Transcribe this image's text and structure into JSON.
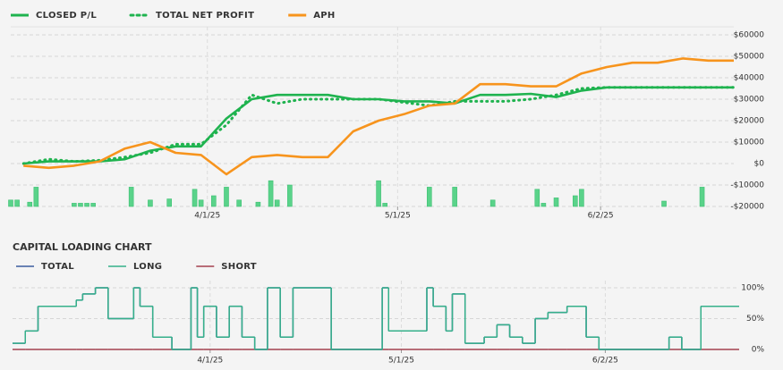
{
  "chart_data": [
    {
      "type": "line",
      "x": [
        "2025-03-03",
        "2025-03-07",
        "2025-03-11",
        "2025-03-15",
        "2025-03-19",
        "2025-03-23",
        "2025-03-27",
        "2025-03-31",
        "2025-04-04",
        "2025-04-08",
        "2025-04-12",
        "2025-04-16",
        "2025-04-20",
        "2025-04-24",
        "2025-04-28",
        "2025-05-02",
        "2025-05-06",
        "2025-05-10",
        "2025-05-14",
        "2025-05-18",
        "2025-05-22",
        "2025-05-26",
        "2025-05-30",
        "2025-06-03",
        "2025-06-07",
        "2025-06-11",
        "2025-06-15",
        "2025-06-19",
        "2025-06-23"
      ],
      "series": [
        {
          "name": "CLOSED P/L",
          "color": "#1fb34f",
          "style": "solid",
          "values": [
            0,
            1000,
            1000,
            1000,
            2000,
            6000,
            8000,
            8000,
            21000,
            30000,
            32000,
            32000,
            32000,
            30000,
            30000,
            29000,
            29000,
            28000,
            32000,
            32000,
            32500,
            31000,
            34000,
            35500,
            35500,
            35500,
            35500,
            35500,
            35500
          ]
        },
        {
          "name": "TOTAL NET PROFIT",
          "color": "#1fb34f",
          "style": "dotted",
          "values": [
            0,
            2000,
            1000,
            1500,
            3000,
            5000,
            9000,
            9000,
            18000,
            32000,
            28000,
            30000,
            30000,
            30000,
            30000,
            28500,
            27000,
            29000,
            29000,
            29000,
            30000,
            32000,
            35000,
            35500,
            35500,
            35500,
            35500,
            35500,
            35500
          ]
        },
        {
          "name": "APH",
          "color": "#f7941d",
          "style": "solid",
          "values": [
            -1000,
            -2000,
            -1000,
            1000,
            7000,
            10000,
            5000,
            4000,
            -5000,
            3000,
            4000,
            3000,
            3000,
            15000,
            20000,
            23000,
            27000,
            28000,
            37000,
            37000,
            36000,
            36000,
            42000,
            45000,
            47000,
            47000,
            49000,
            48000,
            48000
          ]
        }
      ],
      "bars": {
        "color": "#5ad38a",
        "x": [
          "2025-03-01",
          "2025-03-02",
          "2025-03-04",
          "2025-03-05",
          "2025-03-11",
          "2025-03-12",
          "2025-03-13",
          "2025-03-14",
          "2025-03-20",
          "2025-03-23",
          "2025-03-26",
          "2025-03-30",
          "2025-03-31",
          "2025-04-02",
          "2025-04-04",
          "2025-04-06",
          "2025-04-09",
          "2025-04-11",
          "2025-04-12",
          "2025-04-14",
          "2025-04-28",
          "2025-04-29",
          "2025-05-06",
          "2025-05-10",
          "2025-05-16",
          "2025-05-23",
          "2025-05-24",
          "2025-05-26",
          "2025-05-29",
          "2025-05-30",
          "2025-06-12",
          "2025-06-18"
        ],
        "values": [
          -17000,
          -17000,
          -18000,
          -11000,
          -18500,
          -18500,
          -18500,
          -18500,
          -11000,
          -17000,
          -16500,
          -12000,
          -17000,
          -15000,
          -11000,
          -17000,
          -18000,
          -8000,
          -17000,
          -10000,
          -8000,
          -18500,
          -11000,
          -11000,
          -17000,
          -12000,
          -18500,
          -16000,
          -15000,
          -12000,
          -17500,
          -11000
        ]
      },
      "xlim": [
        "2025-03-01",
        "2025-06-23"
      ],
      "xticks": [
        {
          "value": "2025-04-01",
          "label": "4/1/25"
        },
        {
          "value": "2025-05-01",
          "label": "5/1/25"
        },
        {
          "value": "2025-06-02",
          "label": "6/2/25"
        }
      ],
      "ylim": [
        -20000,
        60000
      ],
      "yticks": [
        {
          "value": -20000,
          "label": "-$20000"
        },
        {
          "value": -10000,
          "label": "-$10000"
        },
        {
          "value": 0,
          "label": "$0"
        },
        {
          "value": 10000,
          "label": "$10000"
        },
        {
          "value": 20000,
          "label": "$20000"
        },
        {
          "value": 30000,
          "label": "$30000"
        },
        {
          "value": 40000,
          "label": "$40000"
        },
        {
          "value": 50000,
          "label": "$50000"
        },
        {
          "value": 60000,
          "label": "$60000"
        }
      ],
      "grid": true
    },
    {
      "type": "step",
      "title": "CAPITAL LOADING CHART",
      "x": [
        "2025-03-01",
        "2025-03-03",
        "2025-03-05",
        "2025-03-11",
        "2025-03-12",
        "2025-03-14",
        "2025-03-16",
        "2025-03-20",
        "2025-03-21",
        "2025-03-23",
        "2025-03-26",
        "2025-03-29",
        "2025-03-30",
        "2025-03-31",
        "2025-04-02",
        "2025-04-04",
        "2025-04-06",
        "2025-04-08",
        "2025-04-10",
        "2025-04-12",
        "2025-04-14",
        "2025-04-20",
        "2025-04-28",
        "2025-04-29",
        "2025-05-05",
        "2025-05-06",
        "2025-05-08",
        "2025-05-09",
        "2025-05-11",
        "2025-05-14",
        "2025-05-16",
        "2025-05-18",
        "2025-05-20",
        "2025-05-22",
        "2025-05-24",
        "2025-05-27",
        "2025-05-30",
        "2025-06-01",
        "2025-06-12",
        "2025-06-14",
        "2025-06-17",
        "2025-06-23"
      ],
      "series": [
        {
          "name": "TOTAL",
          "color": "#3b5c9e",
          "values": [
            10,
            30,
            70,
            80,
            90,
            100,
            50,
            100,
            70,
            20,
            0,
            100,
            20,
            70,
            20,
            70,
            20,
            0,
            100,
            20,
            100,
            0,
            100,
            30,
            100,
            70,
            30,
            90,
            10,
            20,
            40,
            20,
            10,
            50,
            60,
            70,
            20,
            0,
            20,
            0,
            70,
            70
          ]
        },
        {
          "name": "LONG",
          "color": "#35b08a",
          "values": [
            10,
            30,
            70,
            80,
            90,
            100,
            50,
            100,
            70,
            20,
            0,
            100,
            20,
            70,
            20,
            70,
            20,
            0,
            100,
            20,
            100,
            0,
            100,
            30,
            100,
            70,
            30,
            90,
            10,
            20,
            40,
            20,
            10,
            50,
            60,
            70,
            20,
            0,
            20,
            0,
            70,
            70
          ]
        },
        {
          "name": "SHORT",
          "color": "#a3404f",
          "values": [
            0,
            0,
            0,
            0,
            0,
            0,
            0,
            0,
            0,
            0,
            0,
            0,
            0,
            0,
            0,
            0,
            0,
            0,
            0,
            0,
            0,
            0,
            0,
            0,
            0,
            0,
            0,
            0,
            0,
            0,
            0,
            0,
            0,
            0,
            0,
            0,
            0,
            0,
            0,
            0,
            0,
            0
          ]
        }
      ],
      "xlim": [
        "2025-03-01",
        "2025-06-23"
      ],
      "xticks": [
        {
          "value": "2025-04-01",
          "label": "4/1/25"
        },
        {
          "value": "2025-05-01",
          "label": "5/1/25"
        },
        {
          "value": "2025-06-02",
          "label": "6/2/25"
        }
      ],
      "ylim": [
        0,
        100
      ],
      "yticks": [
        {
          "value": 0,
          "label": "0%"
        },
        {
          "value": 50,
          "label": "50%"
        },
        {
          "value": 100,
          "label": "100%"
        }
      ],
      "grid": true
    }
  ]
}
